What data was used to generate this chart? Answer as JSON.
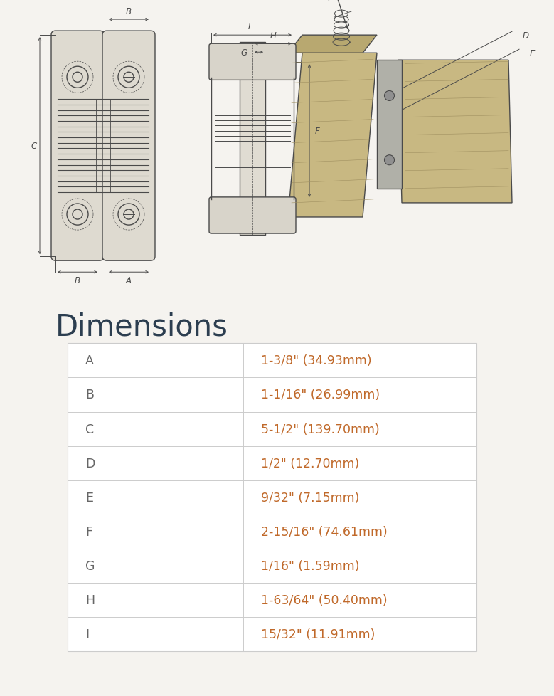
{
  "title": "Dimensions",
  "title_color": "#2c3e50",
  "title_fontsize": 30,
  "bg_color": "#f5f3ef",
  "table_bg": "#ffffff",
  "border_color": "#cccccc",
  "label_color": "#666666",
  "value_color": "#c0692a",
  "label_fontsize": 12.5,
  "value_fontsize": 12.5,
  "diagram_bg": "#edeae1",
  "rows": [
    [
      "A",
      "1-3/8\" (34.93mm)"
    ],
    [
      "B",
      "1-1/16\" (26.99mm)"
    ],
    [
      "C",
      "5-1/2\" (139.70mm)"
    ],
    [
      "D",
      "1/2\" (12.70mm)"
    ],
    [
      "E",
      "9/32\" (7.15mm)"
    ],
    [
      "F",
      "2-15/16\" (74.61mm)"
    ],
    [
      "G",
      "1/16\" (1.59mm)"
    ],
    [
      "H",
      "1-63/64\" (50.40mm)"
    ],
    [
      "I",
      "15/32\" (11.91mm)"
    ]
  ],
  "fig_width": 7.79,
  "fig_height": 9.79
}
